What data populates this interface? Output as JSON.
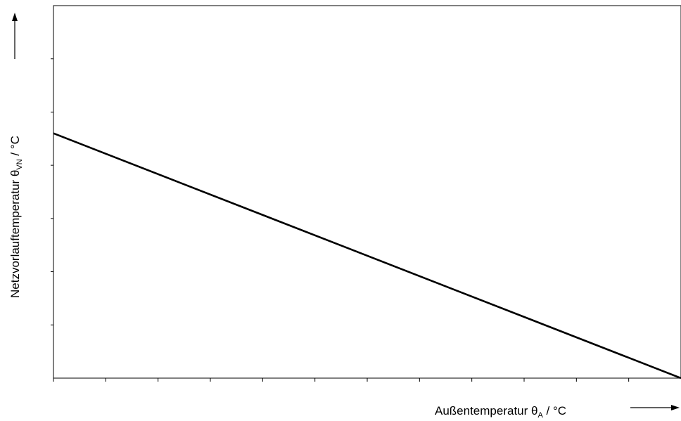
{
  "chart_data": {
    "type": "line",
    "title": "",
    "xlabel": {
      "text": "Außentemperatur ",
      "symbol": "θ",
      "subscript": "A",
      "unit": " / °C"
    },
    "ylabel": {
      "text": "Netzvorlauftemperatur ",
      "symbol": "θ",
      "subscript": "VN",
      "unit": " / °C"
    },
    "x_tick_count": 12,
    "y_tick_count": 7,
    "xlim": [
      0,
      12
    ],
    "ylim": [
      0,
      7
    ],
    "grid": false,
    "legend": "none",
    "series": [
      {
        "x": [
          0,
          12
        ],
        "y": [
          4.6,
          0
        ],
        "color": "#000000"
      }
    ]
  }
}
